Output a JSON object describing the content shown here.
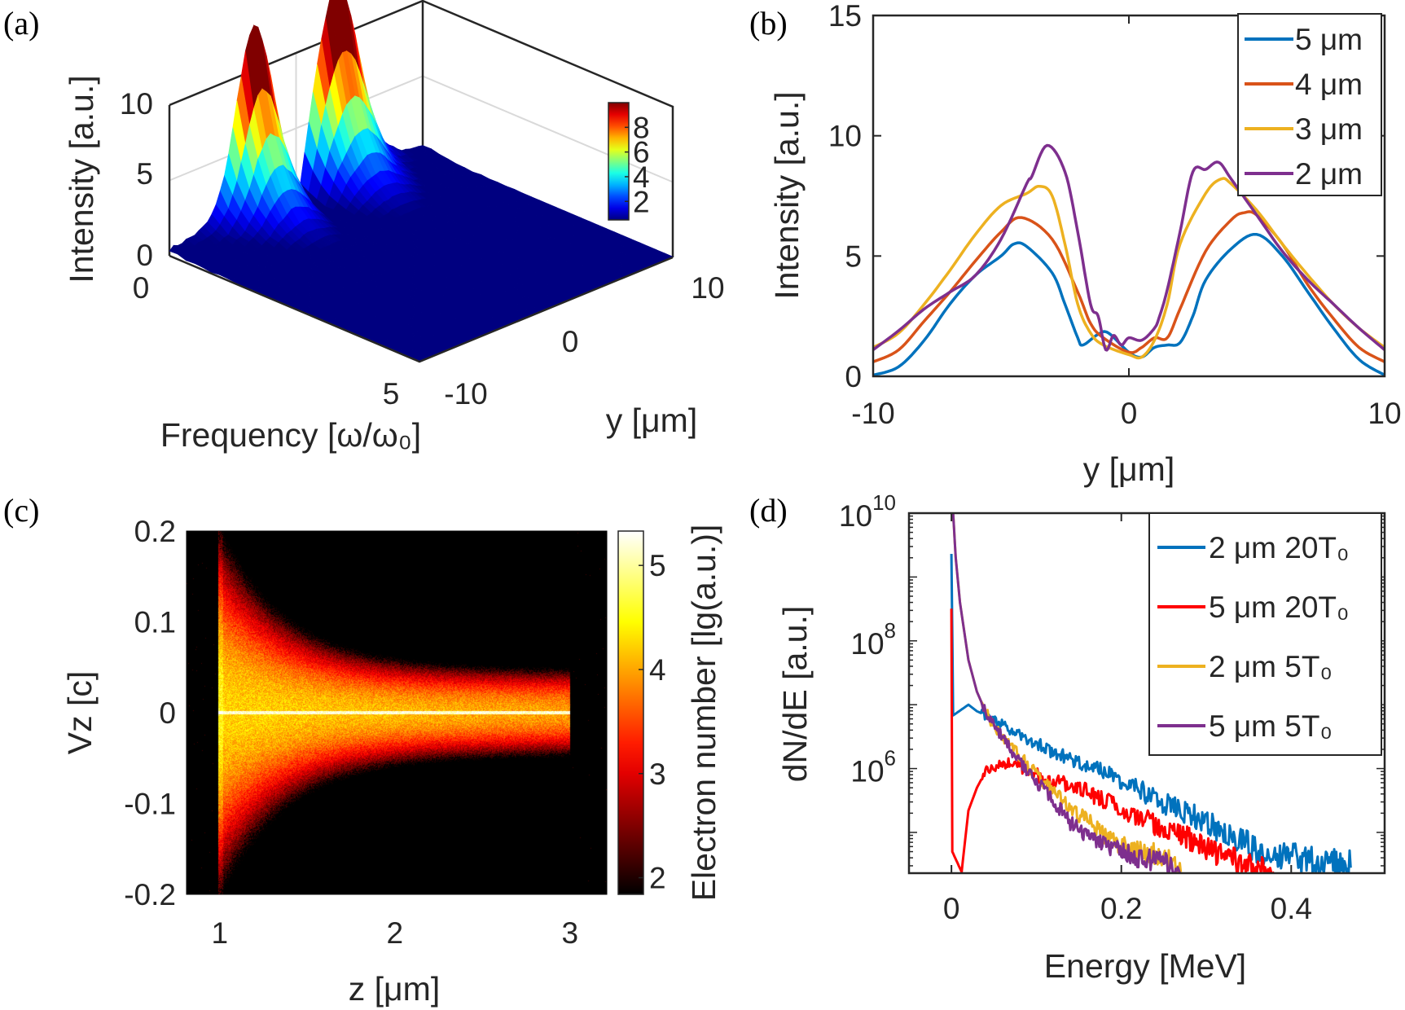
{
  "panels": {
    "a": "(a)",
    "b": "(b)",
    "c": "(c)",
    "d": "(d)"
  },
  "colors": {
    "blue": "#0072BD",
    "orange": "#D95319",
    "yellow": "#EDB120",
    "purple": "#7E2F8E",
    "red": "#FF0000",
    "axis": "#262626"
  },
  "chart_data": [
    {
      "panel": "(a)",
      "type": "surface",
      "xlabel": "Frequency [ω/ω₀]",
      "ylabel": "y [μm]",
      "zlabel": "Intensity [a.u.]",
      "xlim": [
        0,
        5
      ],
      "ylim": [
        -10,
        10
      ],
      "zlim": [
        0,
        10
      ],
      "xticks": [
        "0",
        "5"
      ],
      "yticks": [
        "-10",
        "0",
        "10"
      ],
      "zticks": [
        "0",
        "5",
        "10"
      ],
      "colormap": "jet",
      "clim": [
        0.5,
        10
      ],
      "colorbar_ticks": [
        "2",
        "4",
        "6",
        "8"
      ],
      "grid": true
    },
    {
      "panel": "(b)",
      "type": "line",
      "xlabel": "y [μm]",
      "ylabel": "Intensity [a.u.]",
      "xlim": [
        -10,
        10
      ],
      "ylim": [
        0,
        15
      ],
      "xticks": [
        "-10",
        "0",
        "10"
      ],
      "yticks": [
        "0",
        "5",
        "10",
        "15"
      ],
      "legend": "top-right",
      "series": [
        {
          "name": "5 μm",
          "color": "#0072BD",
          "x": [
            -10,
            -9,
            -8,
            -7,
            -6,
            -5,
            -4.5,
            -4,
            -3,
            -2.5,
            -2,
            -1.8,
            -1.2,
            -0.8,
            0,
            0.5,
            1,
            1.5,
            2,
            2.5,
            3,
            4,
            5,
            6,
            7,
            8,
            9,
            10
          ],
          "y": [
            0.05,
            0.4,
            1.5,
            3,
            4.2,
            5,
            5.5,
            5.4,
            4.3,
            3,
            1.6,
            1.3,
            1.75,
            1.8,
            1.0,
            0.8,
            1.2,
            1.3,
            1.4,
            2.5,
            4,
            5.3,
            5.9,
            5,
            3.5,
            2,
            0.7,
            0.05
          ]
        },
        {
          "name": "4 μm",
          "color": "#D95319",
          "x": [
            -10,
            -9,
            -8,
            -7,
            -6,
            -5,
            -4.2,
            -3,
            -2,
            -1.5,
            -1,
            0,
            0.5,
            1,
            1.5,
            2,
            3,
            4,
            4.5,
            5,
            6,
            7,
            8,
            9,
            10
          ],
          "y": [
            0.6,
            1.1,
            2.3,
            3.5,
            4.8,
            6,
            6.6,
            5.7,
            3.5,
            2.2,
            1.6,
            1.0,
            1.2,
            1.6,
            1.6,
            2.8,
            5.2,
            6.5,
            6.8,
            6.7,
            5.5,
            3.8,
            2.4,
            1.2,
            0.6
          ]
        },
        {
          "name": "3 μm",
          "color": "#EDB120",
          "x": [
            -10,
            -9,
            -8,
            -7,
            -6,
            -5,
            -4,
            -3.5,
            -3,
            -2.5,
            -2,
            -1.5,
            -1,
            0,
            0.5,
            1,
            1.5,
            2,
            3,
            3.6,
            4,
            5,
            6,
            7,
            8,
            9,
            10
          ],
          "y": [
            1.2,
            1.8,
            3,
            4.4,
            5.9,
            7.1,
            7.6,
            7.9,
            7.5,
            5.5,
            3,
            1.8,
            1.3,
            0.9,
            0.8,
            1.5,
            3,
            5.5,
            7.6,
            8.2,
            8,
            6.9,
            5.5,
            4.2,
            3.0,
            2.0,
            1.2
          ]
        },
        {
          "name": "2 μm",
          "color": "#7E2F8E",
          "x": [
            -10,
            -9,
            -8,
            -7,
            -6,
            -5,
            -4,
            -3.8,
            -3.2,
            -2.5,
            -2,
            -1.5,
            -1.2,
            -0.9,
            -0.6,
            -0.3,
            0,
            0.5,
            1,
            1.2,
            1.5,
            2,
            2.5,
            3,
            3.5,
            4,
            5,
            6,
            7,
            8,
            9,
            10
          ],
          "y": [
            1.1,
            1.9,
            2.8,
            3.5,
            4.2,
            5.7,
            8,
            8.3,
            9.6,
            8.5,
            6,
            3,
            2.5,
            1.1,
            1.7,
            1.3,
            1.6,
            1.5,
            2,
            2.5,
            3.6,
            6,
            8.5,
            8.6,
            8.9,
            8.2,
            6.7,
            5.2,
            4,
            3,
            2,
            1.1
          ]
        }
      ]
    },
    {
      "panel": "(c)",
      "type": "heatmap",
      "xlabel": "z [μm]",
      "ylabel": "Vz [c]",
      "xlim": [
        0.81,
        3.21
      ],
      "ylim": [
        -0.2,
        0.2
      ],
      "xticks": [
        "1",
        "2",
        "3"
      ],
      "yticks": [
        "0.2",
        "0.1",
        "0",
        "-0.1",
        "-0.2"
      ],
      "colormap": "hot",
      "clim": [
        1.84,
        5.33
      ],
      "colorbar_label": "Electron number [lg(a.u.)]",
      "colorbar_ticks": [
        "2",
        "3",
        "4",
        "5"
      ]
    },
    {
      "panel": "(d)",
      "type": "line",
      "xlabel": "Energy [MeV]",
      "ylabel": "dN/dE [a.u.]",
      "xlim": [
        -0.05,
        0.51
      ],
      "ylim": [
        23000,
        10000000000
      ],
      "yscale": "log",
      "xticks": [
        "0",
        "0.2",
        "0.4"
      ],
      "yticks": [
        {
          "base": "10",
          "exp": "10"
        },
        {
          "base": "10",
          "exp": "8"
        },
        {
          "base": "10",
          "exp": "6"
        }
      ],
      "legend": "top-right",
      "series": [
        {
          "name": "2 μm 20T₀",
          "color": "#0072BD",
          "x": [
            0,
            0.002,
            0.02,
            0.03,
            0.05,
            0.07,
            0.1,
            0.13,
            0.15,
            0.18,
            0.2,
            0.23,
            0.25,
            0.28,
            0.3,
            0.33,
            0.35,
            0.37,
            0.4,
            0.43,
            0.47
          ],
          "y": [
            2300000000.0,
            6800000.0,
            10000000.0,
            7900000.0,
            6000000.0,
            4000000.0,
            2500000.0,
            1600000.0,
            1260000.0,
            890000.0,
            630000.0,
            400000.0,
            280000.0,
            200000.0,
            140000.0,
            89000.0,
            63000.0,
            45000.0,
            40000.0,
            32000.0,
            28000.0
          ]
        },
        {
          "name": "5 μm 20T₀",
          "color": "#FF0000",
          "x": [
            0,
            0.001,
            0.012,
            0.02,
            0.03,
            0.04,
            0.06,
            0.08,
            0.1,
            0.12,
            0.15,
            0.18,
            0.2,
            0.23,
            0.25,
            0.28,
            0.3,
            0.33,
            0.35,
            0.38
          ],
          "y": [
            320000000.0,
            50000.0,
            24000.0,
            220000.0,
            500000.0,
            890000.0,
            1260000.0,
            1100000.0,
            800000.0,
            630000.0,
            500000.0,
            320000.0,
            220000.0,
            160000.0,
            110000.0,
            80000.0,
            56000.0,
            40000.0,
            28000.0,
            24000.0
          ]
        },
        {
          "name": "2 μm 5T₀",
          "color": "#EDB120",
          "x": [
            0.002,
            0.005,
            0.01,
            0.02,
            0.03,
            0.04,
            0.05,
            0.06,
            0.08,
            0.1,
            0.12,
            0.14,
            0.16,
            0.18,
            0.2,
            0.22,
            0.25,
            0.27
          ],
          "y": [
            10000000000.0,
            2000000000.0,
            400000000.0,
            50000000.0,
            16000000.0,
            7900000.0,
            4600000.0,
            3200000.0,
            1600000.0,
            800000.0,
            450000.0,
            220000.0,
            160000.0,
            89000.0,
            63000.0,
            50000.0,
            45000.0,
            24000.0
          ]
        },
        {
          "name": "5 μm 5T₀",
          "color": "#7E2F8E",
          "x": [
            0.002,
            0.005,
            0.01,
            0.02,
            0.03,
            0.04,
            0.05,
            0.06,
            0.08,
            0.1,
            0.12,
            0.14,
            0.16,
            0.18,
            0.2,
            0.22,
            0.25,
            0.27
          ],
          "y": [
            10000000000.0,
            2000000000.0,
            400000000.0,
            50000000.0,
            16000000.0,
            7900000.0,
            4600000.0,
            3200000.0,
            1260000.0,
            630000.0,
            320000.0,
            140000.0,
            89000.0,
            63000.0,
            50000.0,
            40000.0,
            35000.0,
            24000.0
          ]
        }
      ]
    }
  ]
}
